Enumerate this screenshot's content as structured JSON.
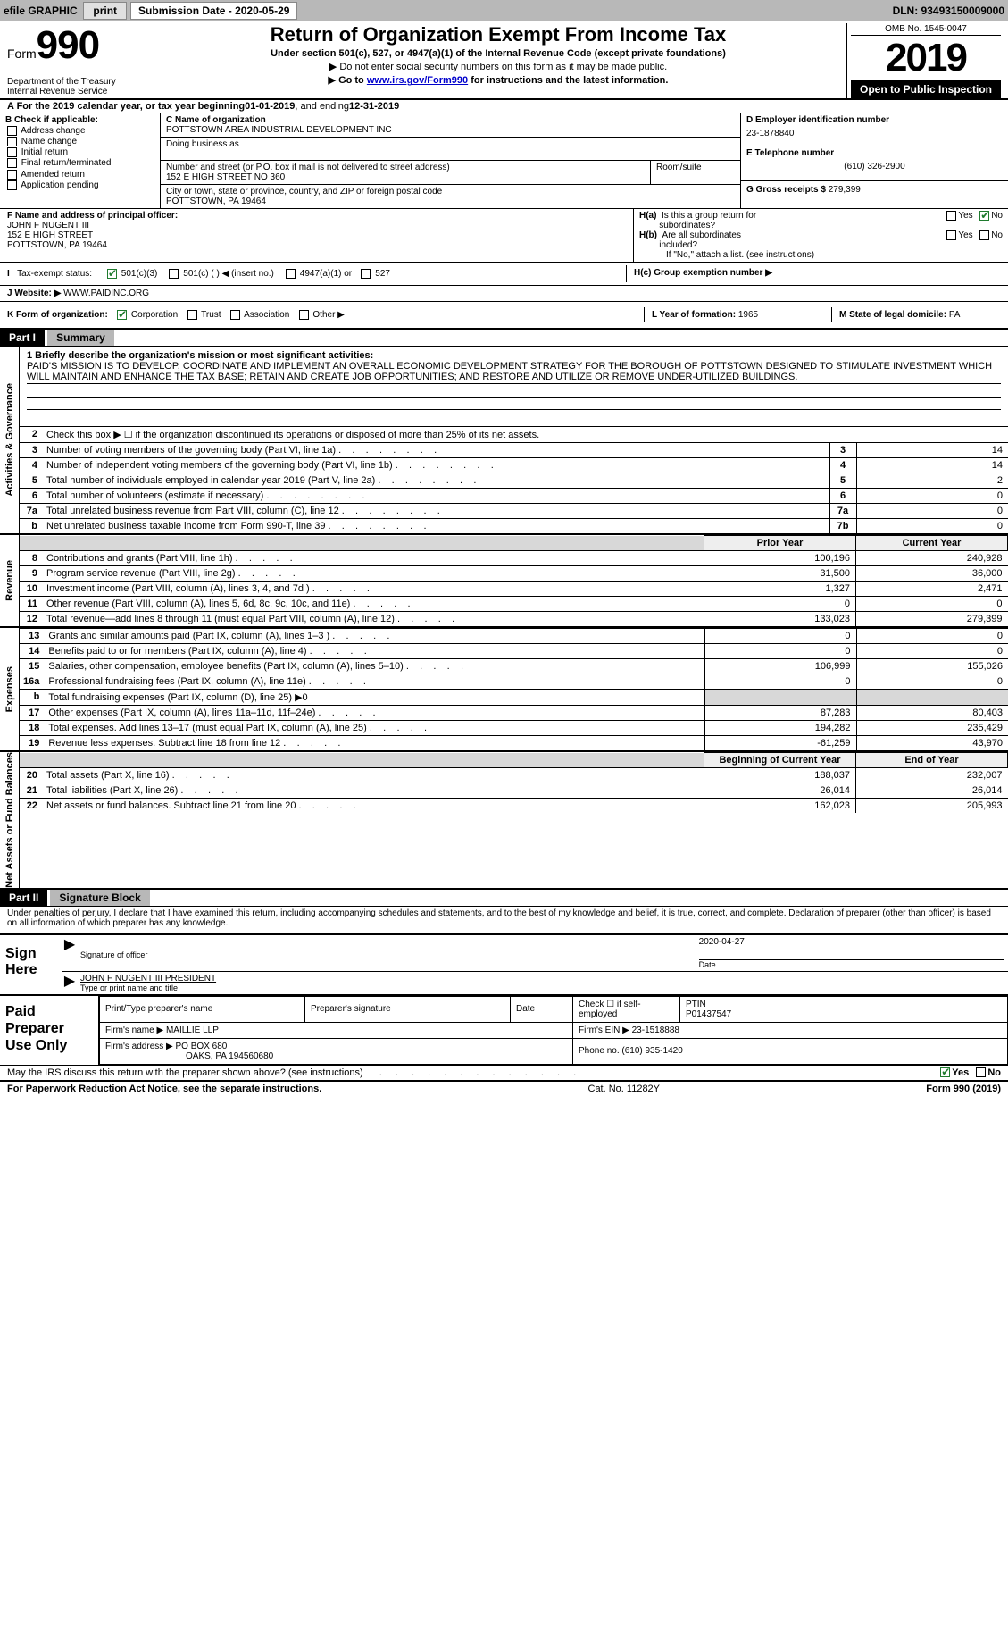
{
  "topbar": {
    "efile": "efile GRAPHIC",
    "print": "print",
    "sub_label": "Submission Date - ",
    "sub_date": "2020-05-29",
    "dln": "DLN: 93493150009000"
  },
  "header": {
    "form_word": "Form",
    "form_num": "990",
    "dept": "Department of the Treasury\nInternal Revenue Service",
    "title": "Return of Organization Exempt From Income Tax",
    "sub": "Under section 501(c), 527, or 4947(a)(1) of the Internal Revenue Code (except private foundations)",
    "line1": "▶ Do not enter social security numbers on this form as it may be made public.",
    "line2_pre": "▶ Go to ",
    "line2_link": "www.irs.gov/Form990",
    "line2_post": " for instructions and the latest information.",
    "omb": "OMB No. 1545-0047",
    "year": "2019",
    "open": "Open to Public Inspection"
  },
  "rowA": {
    "pre": "A For the 2019 calendar year, or tax year beginning ",
    "begin": "01-01-2019",
    "mid": "   , and ending ",
    "end": "12-31-2019"
  },
  "colB": {
    "hdr": "B Check if applicable:",
    "o1": "Address change",
    "o2": "Name change",
    "o3": "Initial return",
    "o4": "Final return/terminated",
    "o5": "Amended return",
    "o6": "Application pending"
  },
  "colC": {
    "name_lbl": "C Name of organization",
    "name": "POTTSTOWN AREA INDUSTRIAL DEVELOPMENT INC",
    "dba_lbl": "Doing business as",
    "addr_lbl": "Number and street (or P.O. box if mail is not delivered to street address)",
    "room_lbl": "Room/suite",
    "addr": "152 E HIGH STREET NO 360",
    "city_lbl": "City or town, state or province, country, and ZIP or foreign postal code",
    "city": "POTTSTOWN, PA  19464"
  },
  "colD": {
    "ein_lbl": "D Employer identification number",
    "ein": "23-1878840",
    "tel_lbl": "E Telephone number",
    "tel": "(610) 326-2900",
    "gross_lbl": "G Gross receipts $ ",
    "gross": "279,399"
  },
  "rowF": {
    "lbl": "F  Name and address of principal officer:",
    "name": "JOHN F NUGENT III",
    "addr1": "152 E HIGH STREET",
    "addr2": "POTTSTOWN, PA  19464"
  },
  "rowH": {
    "a_lbl": "H(a)  Is this a group return for subordinates?",
    "b_lbl": "H(b)  Are all subordinates included?",
    "b_note": "If \"No,\" attach a list. (see instructions)",
    "c_lbl": "H(c)  Group exemption number ▶",
    "yes": "Yes",
    "no": "No"
  },
  "taxRow": {
    "lbl": "Tax-exempt status:",
    "o1": "501(c)(3)",
    "o2_a": "501(c) (  )",
    "o2_b": "◀ (insert no.)",
    "o3": "4947(a)(1) or",
    "o4": "527"
  },
  "webRow": {
    "lbl": "J   Website: ▶",
    "val": "WWW.PAIDINC.ORG"
  },
  "kRow": {
    "lbl": "K Form of organization:",
    "o1": "Corporation",
    "o2": "Trust",
    "o3": "Association",
    "o4": "Other ▶",
    "l_lbl": "L Year of formation: ",
    "l_val": "1965",
    "m_lbl": "M State of legal domicile: ",
    "m_val": "PA"
  },
  "part1": {
    "hdr": "Part I",
    "title": "Summary"
  },
  "gov": {
    "label": "Activities & Governance",
    "l1_lbl": "1   Briefly describe the organization's mission or most significant activities:",
    "l1_text": "PAID'S MISSION IS TO DEVELOP, COORDINATE AND IMPLEMENT AN OVERALL ECONOMIC DEVELOPMENT STRATEGY FOR THE BOROUGH OF POTTSTOWN DESIGNED TO STIMULATE INVESTMENT WHICH WILL MAINTAIN AND ENHANCE THE TAX BASE; RETAIN AND CREATE JOB OPPORTUNITIES; AND RESTORE AND UTILIZE OR REMOVE UNDER-UTILIZED BUILDINGS.",
    "l2": "Check this box ▶ ☐  if the organization discontinued its operations or disposed of more than 25% of its net assets.",
    "rows": [
      {
        "n": "3",
        "d": "Number of voting members of the governing body (Part VI, line 1a)",
        "box": "3",
        "v": "14"
      },
      {
        "n": "4",
        "d": "Number of independent voting members of the governing body (Part VI, line 1b)",
        "box": "4",
        "v": "14"
      },
      {
        "n": "5",
        "d": "Total number of individuals employed in calendar year 2019 (Part V, line 2a)",
        "box": "5",
        "v": "2"
      },
      {
        "n": "6",
        "d": "Total number of volunteers (estimate if necessary)",
        "box": "6",
        "v": "0"
      },
      {
        "n": "7a",
        "d": "Total unrelated business revenue from Part VIII, column (C), line 12",
        "box": "7a",
        "v": "0"
      },
      {
        "n": "b",
        "d": "Net unrelated business taxable income from Form 990-T, line 39",
        "box": "7b",
        "v": "0"
      }
    ]
  },
  "rev": {
    "label": "Revenue",
    "hdr_prior": "Prior Year",
    "hdr_curr": "Current Year",
    "rows": [
      {
        "n": "8",
        "d": "Contributions and grants (Part VIII, line 1h)",
        "p": "100,196",
        "c": "240,928"
      },
      {
        "n": "9",
        "d": "Program service revenue (Part VIII, line 2g)",
        "p": "31,500",
        "c": "36,000"
      },
      {
        "n": "10",
        "d": "Investment income (Part VIII, column (A), lines 3, 4, and 7d )",
        "p": "1,327",
        "c": "2,471"
      },
      {
        "n": "11",
        "d": "Other revenue (Part VIII, column (A), lines 5, 6d, 8c, 9c, 10c, and 11e)",
        "p": "0",
        "c": "0"
      },
      {
        "n": "12",
        "d": "Total revenue—add lines 8 through 11 (must equal Part VIII, column (A), line 12)",
        "p": "133,023",
        "c": "279,399"
      }
    ]
  },
  "exp": {
    "label": "Expenses",
    "rows": [
      {
        "n": "13",
        "d": "Grants and similar amounts paid (Part IX, column (A), lines 1–3 )",
        "p": "0",
        "c": "0"
      },
      {
        "n": "14",
        "d": "Benefits paid to or for members (Part IX, column (A), line 4)",
        "p": "0",
        "c": "0"
      },
      {
        "n": "15",
        "d": "Salaries, other compensation, employee benefits (Part IX, column (A), lines 5–10)",
        "p": "106,999",
        "c": "155,026"
      },
      {
        "n": "16a",
        "d": "Professional fundraising fees (Part IX, column (A), line 11e)",
        "p": "0",
        "c": "0"
      },
      {
        "n": "b",
        "d": "Total fundraising expenses (Part IX, column (D), line 25)  ▶0",
        "p": "",
        "c": "",
        "shade": true
      },
      {
        "n": "17",
        "d": "Other expenses (Part IX, column (A), lines 11a–11d, 11f–24e)",
        "p": "87,283",
        "c": "80,403"
      },
      {
        "n": "18",
        "d": "Total expenses. Add lines 13–17 (must equal Part IX, column (A), line 25)",
        "p": "194,282",
        "c": "235,429"
      },
      {
        "n": "19",
        "d": "Revenue less expenses. Subtract line 18 from line 12",
        "p": "-61,259",
        "c": "43,970"
      }
    ]
  },
  "bal": {
    "label": "Net Assets or Fund Balances",
    "hdr_begin": "Beginning of Current Year",
    "hdr_end": "End of Year",
    "rows": [
      {
        "n": "20",
        "d": "Total assets (Part X, line 16)",
        "p": "188,037",
        "c": "232,007"
      },
      {
        "n": "21",
        "d": "Total liabilities (Part X, line 26)",
        "p": "26,014",
        "c": "26,014"
      },
      {
        "n": "22",
        "d": "Net assets or fund balances. Subtract line 21 from line 20",
        "p": "162,023",
        "c": "205,993"
      }
    ]
  },
  "part2": {
    "hdr": "Part II",
    "title": "Signature Block"
  },
  "perjury": "Under penalties of perjury, I declare that I have examined this return, including accompanying schedules and statements, and to the best of my knowledge and belief, it is true, correct, and complete. Declaration of preparer (other than officer) is based on all information of which preparer has any knowledge.",
  "sign": {
    "label": "Sign Here",
    "sig_lbl": "Signature of officer",
    "date_lbl": "Date",
    "date": "2020-04-27",
    "name": "JOHN F NUGENT III PRESIDENT",
    "name_lbl": "Type or print name and title"
  },
  "prep": {
    "label": "Paid Preparer Use Only",
    "h1": "Print/Type preparer's name",
    "h2": "Preparer's signature",
    "h3": "Date",
    "h4": "Check ☐ if self-employed",
    "h5_lbl": "PTIN",
    "h5": "P01437547",
    "firm_name_lbl": "Firm's name    ▶ ",
    "firm_name": "MAILLIE LLP",
    "firm_ein_lbl": "Firm's EIN ▶ ",
    "firm_ein": "23-1518888",
    "firm_addr_lbl": "Firm's address ▶ ",
    "firm_addr1": "PO BOX 680",
    "firm_addr2": "OAKS, PA  194560680",
    "phone_lbl": "Phone no. ",
    "phone": "(610) 935-1420"
  },
  "discuss": {
    "text": "May the IRS discuss this return with the preparer shown above? (see instructions)",
    "yes": "Yes",
    "no": "No"
  },
  "footer": {
    "left": "For Paperwork Reduction Act Notice, see the separate instructions.",
    "mid": "Cat. No. 11282Y",
    "right": "Form 990 (2019)"
  }
}
